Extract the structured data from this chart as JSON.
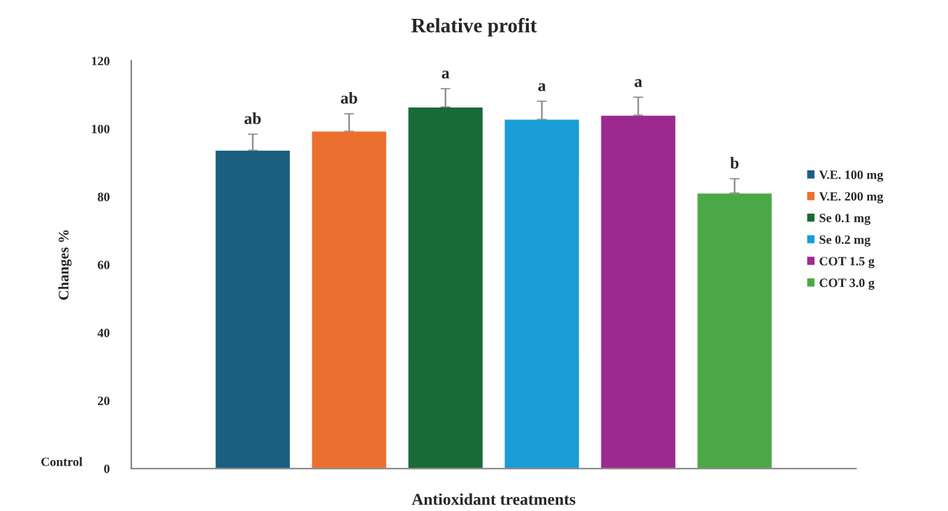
{
  "chart_data": {
    "type": "bar",
    "title": "Relative profit",
    "xlabel": "Antioxidant treatments",
    "ylabel": "Changes %",
    "categories": [
      null,
      null,
      null,
      null,
      null,
      null
    ],
    "series": [
      {
        "name": "V.E. 100 mg",
        "color": "#1a5e80",
        "values": [
          93.7,
          null,
          null,
          null,
          null,
          null
        ],
        "errors": [
          [
            93.7,
            98.4
          ],
          null,
          null,
          null,
          null,
          null
        ],
        "value_labels": [
          "ab",
          null,
          null,
          null,
          null,
          null
        ]
      },
      {
        "name": "V.E. 200 mg",
        "color": "#eb6f2f",
        "values": [
          null,
          99.3,
          null,
          null,
          null,
          null
        ],
        "errors": [
          null,
          [
            99.3,
            104.4
          ],
          null,
          null,
          null,
          null
        ],
        "value_labels": [
          null,
          "ab",
          null,
          null,
          null,
          null
        ]
      },
      {
        "name": "Se 0.1 mg",
        "color": "#186a37",
        "values": [
          null,
          null,
          106.4,
          null,
          null,
          null
        ],
        "errors": [
          null,
          null,
          [
            106.4,
            111.8
          ],
          null,
          null,
          null
        ],
        "value_labels": [
          null,
          null,
          "a",
          null,
          null,
          null
        ]
      },
      {
        "name": "Se 0.2 mg",
        "color": "#1a9cd6",
        "values": [
          null,
          null,
          null,
          102.8,
          null,
          null
        ],
        "errors": [
          null,
          null,
          null,
          [
            102.8,
            108.1
          ],
          null,
          null
        ],
        "value_labels": [
          null,
          null,
          null,
          "a",
          null,
          null
        ]
      },
      {
        "name": "COT 1.5 g",
        "color": "#9c2a8e",
        "values": [
          null,
          null,
          null,
          null,
          104.0,
          null
        ],
        "errors": [
          null,
          null,
          null,
          null,
          [
            104.0,
            109.3
          ],
          null
        ],
        "value_labels": [
          null,
          null,
          null,
          null,
          "a",
          null
        ]
      },
      {
        "name": "COT 3.0 g",
        "color": "#4ca846",
        "values": [
          null,
          null,
          null,
          null,
          null,
          81.1
        ],
        "errors": [
          null,
          null,
          null,
          null,
          null,
          [
            81.1,
            85.3
          ]
        ],
        "value_labels": [
          null,
          null,
          null,
          null,
          null,
          "b"
        ]
      }
    ],
    "ylim": [
      0,
      120
    ],
    "yticks": [
      0,
      20,
      40,
      60,
      80,
      100,
      120
    ],
    "grid": false,
    "legend": "right",
    "annotations": [
      "Control"
    ]
  }
}
